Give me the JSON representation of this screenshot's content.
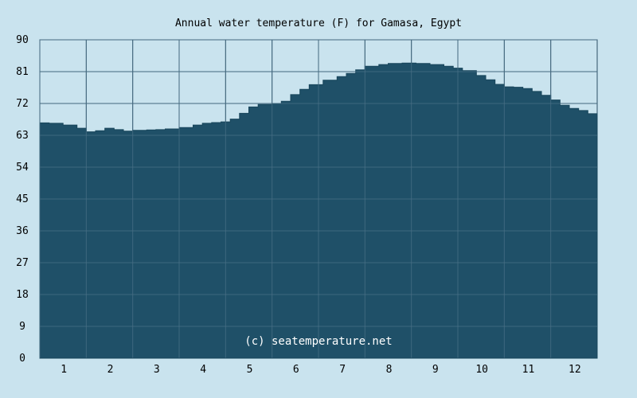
{
  "chart_data": {
    "type": "area",
    "title": "Annual water temperature (F) for Gamasa, Egypt",
    "xlabel": "",
    "ylabel": "",
    "x_ticks": [
      "1",
      "2",
      "3",
      "4",
      "5",
      "6",
      "7",
      "8",
      "9",
      "10",
      "11",
      "12"
    ],
    "xlim": [
      0.5,
      12.5
    ],
    "y_ticks": [
      0,
      9,
      18,
      27,
      36,
      45,
      54,
      63,
      72,
      81,
      90
    ],
    "ylim": [
      0,
      90
    ],
    "grid": true,
    "credit": "(c) seatemperature.net",
    "colors": {
      "background": "#c9e3ee",
      "plot_background": "#c9e3ee",
      "fill": "#1f5068",
      "grid": "#4a6f85"
    },
    "x": [
      0.5,
      0.7,
      1.0,
      1.3,
      1.5,
      1.7,
      1.9,
      2.1,
      2.3,
      2.5,
      2.8,
      3.0,
      3.2,
      3.5,
      3.8,
      4.0,
      4.2,
      4.4,
      4.6,
      4.8,
      5.0,
      5.2,
      5.5,
      5.7,
      5.9,
      6.1,
      6.3,
      6.6,
      6.9,
      7.1,
      7.3,
      7.5,
      7.8,
      8.0,
      8.3,
      8.6,
      8.9,
      9.2,
      9.4,
      9.6,
      9.9,
      10.1,
      10.3,
      10.5,
      10.7,
      10.9,
      11.1,
      11.3,
      11.5,
      11.7,
      11.9,
      12.1,
      12.3,
      12.5
    ],
    "y": [
      66.5,
      66.4,
      65.9,
      65.0,
      64.0,
      64.3,
      65.0,
      64.6,
      64.2,
      64.4,
      64.5,
      64.6,
      64.8,
      65.2,
      65.9,
      66.4,
      66.6,
      66.8,
      67.6,
      69.2,
      71.0,
      71.7,
      72.0,
      72.6,
      74.5,
      76.0,
      77.3,
      78.6,
      79.6,
      80.5,
      81.5,
      82.5,
      83.0,
      83.3,
      83.4,
      83.3,
      83.0,
      82.5,
      82.0,
      81.3,
      79.9,
      78.7,
      77.4,
      76.7,
      76.6,
      76.2,
      75.4,
      74.3,
      73.0,
      71.5,
      70.6,
      70.0,
      69.1,
      68.0
    ]
  }
}
